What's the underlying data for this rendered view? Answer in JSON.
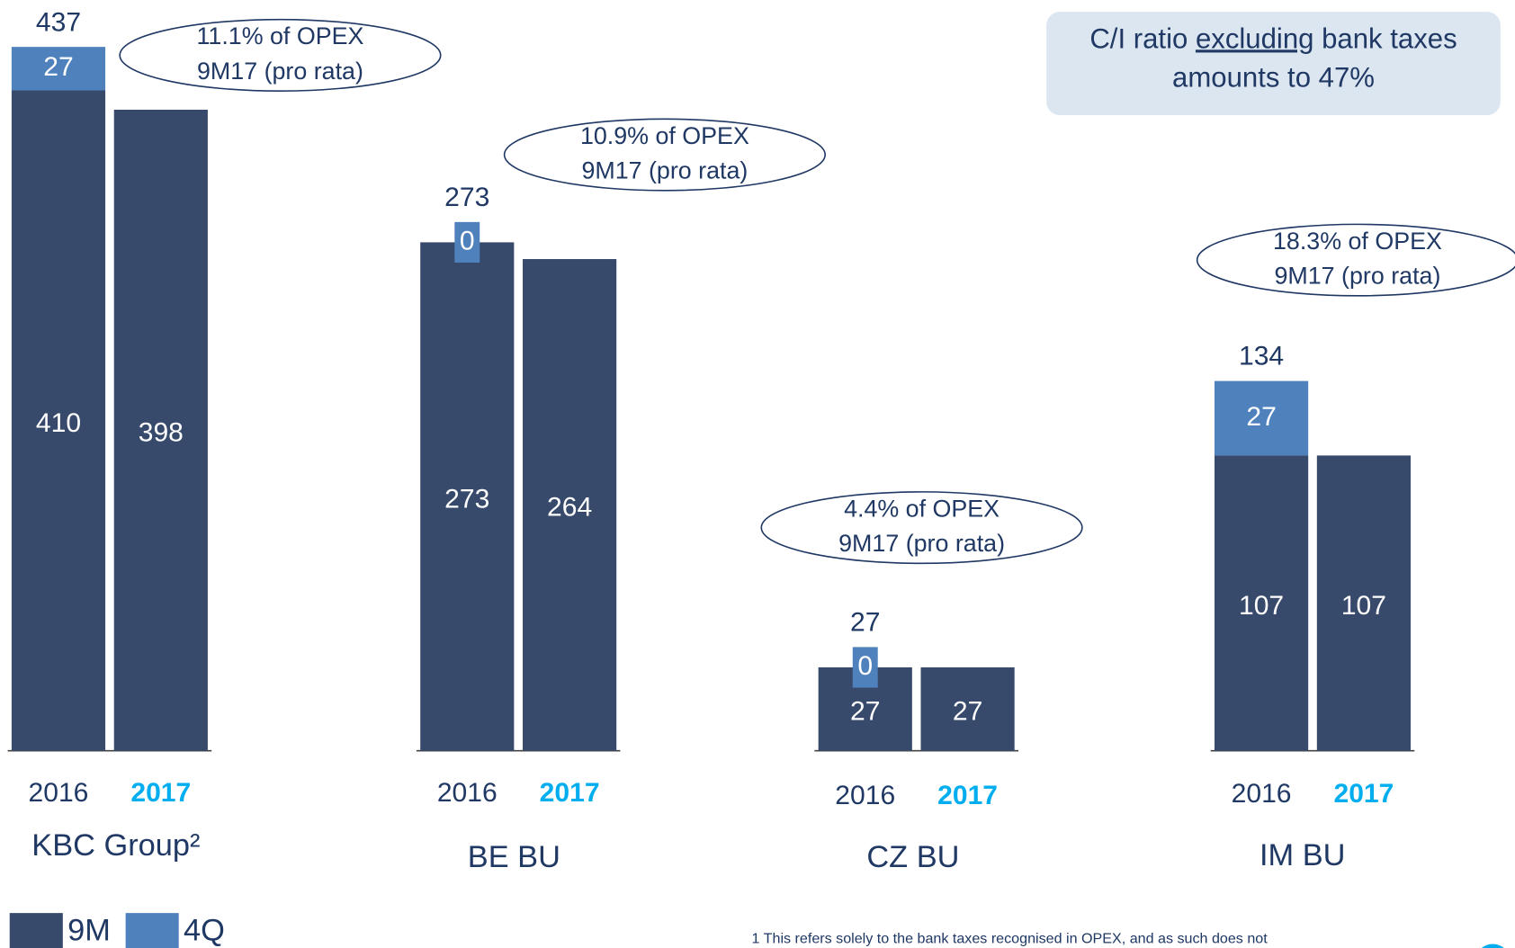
{
  "chart_data": [
    {
      "type": "bar",
      "xlabel": "KBC Group²",
      "categories": [
        "2016",
        "2017"
      ],
      "series": [
        {
          "name": "9M",
          "color": "#374a6b",
          "values": [
            410,
            398
          ]
        },
        {
          "name": "4Q",
          "color": "#4f81bd",
          "values": [
            27,
            null
          ]
        }
      ],
      "totals": [
        437,
        null
      ],
      "ylim": [
        0,
        466
      ],
      "annotation": [
        "11.1% of OPEX",
        "9M17 (pro rata)"
      ]
    },
    {
      "type": "bar",
      "xlabel": "BE BU",
      "categories": [
        "2016",
        "2017"
      ],
      "series": [
        {
          "name": "9M",
          "color": "#374a6b",
          "values": [
            273,
            264
          ]
        },
        {
          "name": "4Q",
          "color": "#4f81bd",
          "values": [
            0,
            null
          ]
        }
      ],
      "totals": [
        273,
        null
      ],
      "ylim": [
        0,
        403
      ],
      "annotation": [
        "10.9% of OPEX",
        "9M17 (pro rata)"
      ]
    },
    {
      "type": "bar",
      "xlabel": "CZ BU",
      "categories": [
        "2016",
        "2017"
      ],
      "series": [
        {
          "name": "9M",
          "color": "#374a6b",
          "values": [
            27,
            27
          ]
        },
        {
          "name": "4Q",
          "color": "#4f81bd",
          "values": [
            0,
            null
          ]
        }
      ],
      "totals": [
        27,
        null
      ],
      "ylim": [
        0,
        243
      ],
      "annotation": [
        "4.4% of OPEX",
        "9M17 (pro rata)"
      ]
    },
    {
      "type": "bar",
      "xlabel": "IM BU",
      "categories": [
        "2016",
        "2017"
      ],
      "series": [
        {
          "name": "9M",
          "color": "#374a6b",
          "values": [
            107,
            107
          ]
        },
        {
          "name": "4Q",
          "color": "#4f81bd",
          "values": [
            27,
            null
          ]
        }
      ],
      "totals": [
        134,
        null
      ],
      "ylim": [
        0,
        272
      ],
      "annotation": [
        "18.3% of OPEX",
        "9M17 (pro rata)"
      ]
    }
  ],
  "callout": {
    "parts": [
      "C/I ratio ",
      "excluding",
      " bank taxes"
    ],
    "line2": "amounts to 47%"
  },
  "footnote": "1 This refers solely to the bank taxes recognised in OPEX, and as such does not"
}
